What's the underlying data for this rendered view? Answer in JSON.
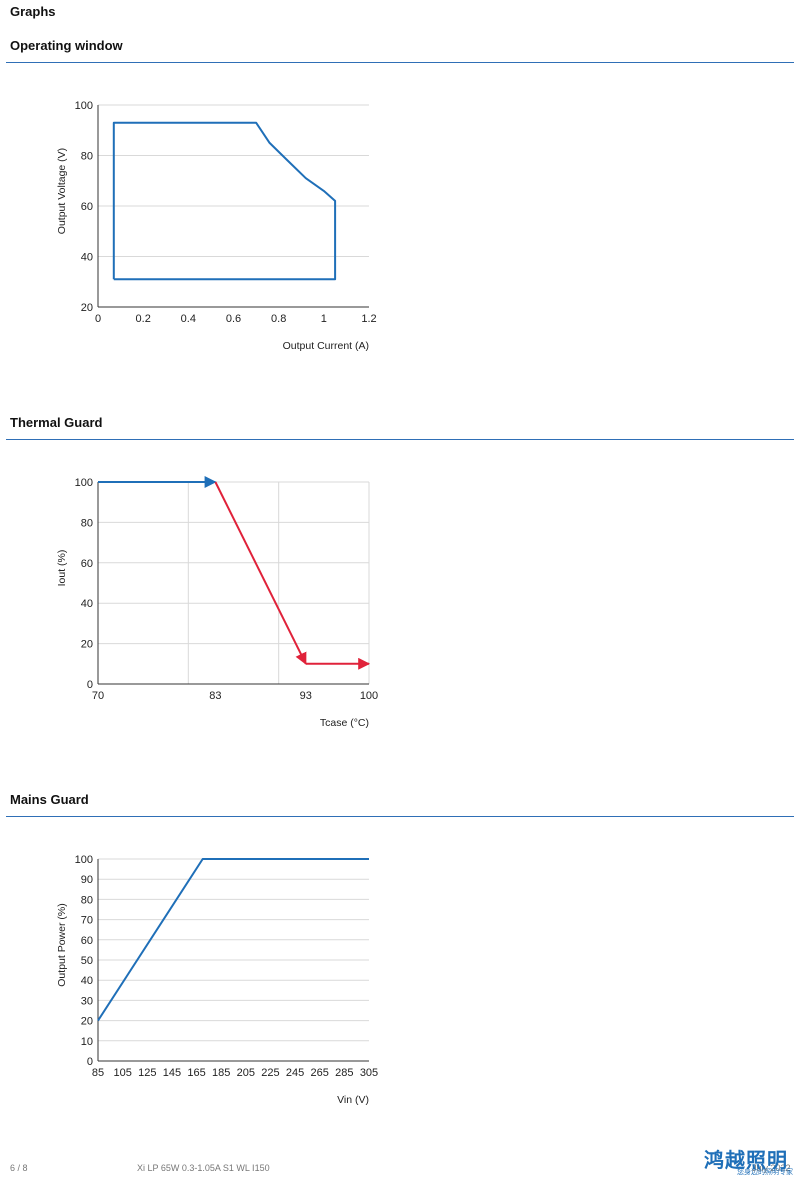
{
  "page_title": "Graphs",
  "sections": [
    {
      "title": "Operating window"
    },
    {
      "title": "Thermal Guard"
    },
    {
      "title": "Mains Guard"
    }
  ],
  "footer": {
    "page": "6 / 8",
    "product": "Xi LP 65W 0.3-1.05A S1 WL I150",
    "date": "July 2022"
  },
  "watermark": {
    "main": "鸿越照明",
    "sub": "您身边的照明专家"
  },
  "colors": {
    "rule": "#2f6fb6",
    "series_blue": "#1f6fb8",
    "series_red": "#e0223a",
    "grid": "#d9d9d9"
  },
  "chart_data": [
    {
      "type": "line",
      "title": "",
      "xlabel": "Output Current (A)",
      "ylabel": "Output Voltage (V)",
      "xlim": [
        0,
        1.2
      ],
      "ylim": [
        20,
        100
      ],
      "xticks": [
        0,
        0.2,
        0.4,
        0.6,
        0.8,
        1,
        1.2
      ],
      "xtick_labels": [
        "0",
        "0.2",
        "0.4",
        "0.6",
        "0.8",
        "1",
        "1.2"
      ],
      "yticks": [
        20,
        40,
        60,
        80,
        100
      ],
      "ytick_labels": [
        "20",
        "40",
        "60",
        "80",
        "100"
      ],
      "grid": "horizontal",
      "series": [
        {
          "x": [
            0.07,
            0.07,
            0.7,
            0.76,
            0.84,
            0.92,
            1.0,
            1.05,
            1.05,
            0.07
          ],
          "y": [
            31,
            93,
            93,
            85,
            78,
            71,
            66,
            62,
            31,
            31
          ]
        }
      ]
    },
    {
      "type": "line",
      "title": "",
      "xlabel": "Tcase (°C)",
      "ylabel": "Iout (%)",
      "xlim": [
        0,
        3
      ],
      "ylim": [
        0,
        100
      ],
      "xticks": [
        0,
        1.3,
        2.3,
        3
      ],
      "xtick_labels": [
        "70",
        "83",
        "93",
        "100"
      ],
      "yticks": [
        0,
        20,
        40,
        60,
        80,
        100
      ],
      "ytick_labels": [
        "0",
        "20",
        "40",
        "60",
        "80",
        "100"
      ],
      "vgrid": [
        1,
        2
      ],
      "grid": "both",
      "series": [
        {
          "color": "#1f6fb8",
          "arrow": true,
          "x": [
            0,
            1.3
          ],
          "y": [
            100,
            100
          ]
        },
        {
          "color": "#e0223a",
          "arrow": true,
          "x": [
            1.3,
            2.3
          ],
          "y": [
            100,
            10
          ]
        },
        {
          "color": "#e0223a",
          "arrow": true,
          "x": [
            2.3,
            3
          ],
          "y": [
            10,
            10
          ]
        }
      ]
    },
    {
      "type": "line",
      "title": "",
      "xlabel": "Vin (V)",
      "ylabel": "Output Power (%)",
      "xlim": [
        85,
        305
      ],
      "ylim": [
        0,
        100
      ],
      "xticks": [
        85,
        105,
        125,
        145,
        165,
        185,
        205,
        225,
        245,
        265,
        285,
        305
      ],
      "xtick_labels": [
        "85",
        "105",
        "125",
        "145",
        "165",
        "185",
        "205",
        "225",
        "245",
        "265",
        "285",
        "305"
      ],
      "yticks": [
        0,
        10,
        20,
        30,
        40,
        50,
        60,
        70,
        80,
        90,
        100
      ],
      "ytick_labels": [
        "0",
        "10",
        "20",
        "30",
        "40",
        "50",
        "60",
        "70",
        "80",
        "90",
        "100"
      ],
      "grid": "horizontal",
      "series": [
        {
          "x": [
            85,
            170,
            305
          ],
          "y": [
            20,
            100,
            100
          ]
        }
      ]
    }
  ]
}
